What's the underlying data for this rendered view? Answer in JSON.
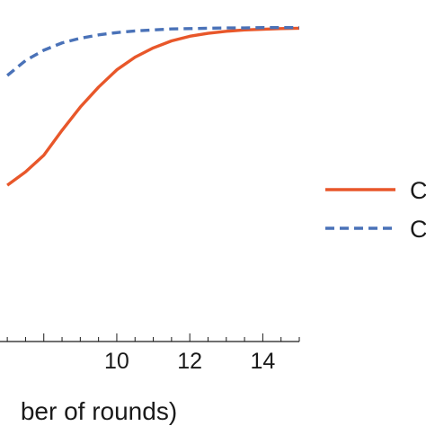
{
  "chart_data": {
    "type": "line",
    "xlabel": "ber of rounds)",
    "ylabel": "",
    "title": "",
    "xlim": [
      6.8,
      15.0
    ],
    "ylim": [
      0.0,
      1.0
    ],
    "x_ticks": [
      10,
      12,
      14
    ],
    "x_tick_labels": [
      "10",
      "12",
      "14"
    ],
    "grid": false,
    "legend_position": "right",
    "series": [
      {
        "name": "C",
        "style": "solid",
        "color": "#E8572A",
        "x": [
          7.0,
          7.5,
          8.0,
          8.5,
          9.0,
          9.5,
          10.0,
          10.5,
          11.0,
          11.5,
          12.0,
          12.5,
          13.0,
          13.5,
          14.0,
          14.5,
          15.0
        ],
        "y": [
          0.47,
          0.51,
          0.56,
          0.635,
          0.705,
          0.765,
          0.817,
          0.855,
          0.883,
          0.904,
          0.918,
          0.927,
          0.933,
          0.937,
          0.939,
          0.941,
          0.942
        ]
      },
      {
        "name": "C",
        "style": "dashed",
        "color": "#4A72B8",
        "x": [
          7.0,
          7.5,
          8.0,
          8.5,
          9.0,
          9.5,
          10.0,
          10.5,
          11.0,
          11.5,
          12.0,
          12.5,
          13.0,
          13.5,
          14.0,
          14.5,
          15.0
        ],
        "y": [
          0.8,
          0.845,
          0.876,
          0.898,
          0.912,
          0.922,
          0.929,
          0.934,
          0.937,
          0.94,
          0.941,
          0.942,
          0.943,
          0.943,
          0.944,
          0.944,
          0.944
        ]
      }
    ],
    "colors": {
      "solid_series": "#E8572A",
      "dashed_series": "#4A72B8",
      "axis": "#1a1a1a"
    }
  }
}
